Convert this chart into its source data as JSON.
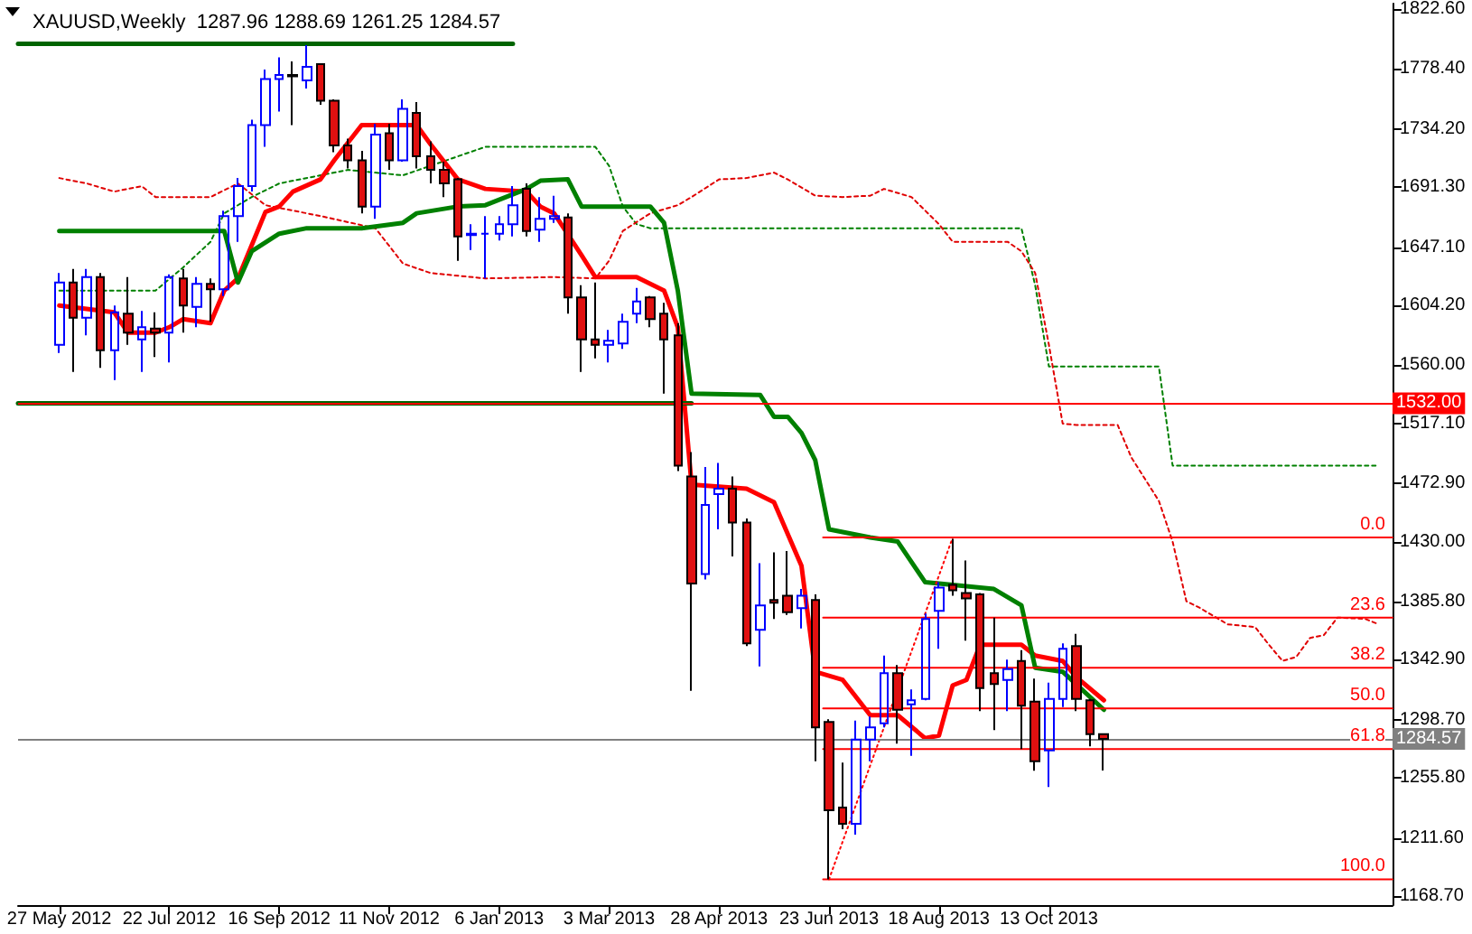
{
  "chart_data": {
    "type": "candlestick",
    "title": "XAUUSD,Weekly  1287.96 1288.69 1261.25 1284.57",
    "x": [
      "2012-05-27",
      "2012-06-03",
      "2012-06-10",
      "2012-06-17",
      "2012-06-24",
      "2012-07-01",
      "2012-07-08",
      "2012-07-15",
      "2012-07-22",
      "2012-07-29",
      "2012-08-05",
      "2012-08-12",
      "2012-08-19",
      "2012-08-26",
      "2012-09-02",
      "2012-09-09",
      "2012-09-16",
      "2012-09-23",
      "2012-09-30",
      "2012-10-07",
      "2012-10-14",
      "2012-10-21",
      "2012-10-28",
      "2012-11-04",
      "2012-11-11",
      "2012-11-18",
      "2012-11-25",
      "2012-12-02",
      "2012-12-09",
      "2012-12-16",
      "2012-12-23",
      "2012-12-30",
      "2013-01-06",
      "2013-01-13",
      "2013-01-20",
      "2013-01-27",
      "2013-02-03",
      "2013-02-10",
      "2013-02-17",
      "2013-02-24",
      "2013-03-03",
      "2013-03-10",
      "2013-03-17",
      "2013-03-24",
      "2013-03-31",
      "2013-04-07",
      "2013-04-14",
      "2013-04-21",
      "2013-04-28",
      "2013-05-05",
      "2013-05-12",
      "2013-05-19",
      "2013-05-26",
      "2013-06-02",
      "2013-06-09",
      "2013-06-16",
      "2013-06-23",
      "2013-06-30",
      "2013-07-07",
      "2013-07-14",
      "2013-07-21",
      "2013-07-28",
      "2013-08-04",
      "2013-08-11",
      "2013-08-18",
      "2013-08-25",
      "2013-09-01",
      "2013-09-08",
      "2013-09-15",
      "2013-09-22",
      "2013-09-29",
      "2013-10-06",
      "2013-10-13",
      "2013-10-20",
      "2013-10-27",
      "2013-11-03",
      "2013-11-10"
    ],
    "ohlc": [
      [
        1575,
        1628,
        1569,
        1621
      ],
      [
        1621,
        1631,
        1555,
        1595
      ],
      [
        1595,
        1631,
        1582,
        1625
      ],
      [
        1625,
        1628,
        1558,
        1571
      ],
      [
        1571,
        1604,
        1549,
        1599
      ],
      [
        1598,
        1625,
        1575,
        1584
      ],
      [
        1579,
        1600,
        1555,
        1588
      ],
      [
        1587,
        1599,
        1566,
        1584
      ],
      [
        1584,
        1627,
        1562,
        1625
      ],
      [
        1624,
        1631,
        1584,
        1604
      ],
      [
        1603,
        1625,
        1588,
        1620
      ],
      [
        1620,
        1624,
        1592,
        1616
      ],
      [
        1616,
        1674,
        1611,
        1670
      ],
      [
        1670,
        1698,
        1651,
        1692
      ],
      [
        1692,
        1741,
        1688,
        1737
      ],
      [
        1737,
        1778,
        1721,
        1771
      ],
      [
        1771,
        1787,
        1747,
        1774
      ],
      [
        1774,
        1784,
        1737,
        1773
      ],
      [
        1770,
        1796,
        1764,
        1780
      ],
      [
        1782,
        1782,
        1752,
        1755
      ],
      [
        1755,
        1756,
        1717,
        1722
      ],
      [
        1722,
        1727,
        1705,
        1711
      ],
      [
        1711,
        1718,
        1672,
        1677
      ],
      [
        1677,
        1738,
        1668,
        1730
      ],
      [
        1731,
        1738,
        1704,
        1711
      ],
      [
        1711,
        1756,
        1710,
        1749
      ],
      [
        1746,
        1754,
        1705,
        1714
      ],
      [
        1714,
        1725,
        1694,
        1704
      ],
      [
        1704,
        1710,
        1684,
        1694
      ],
      [
        1697,
        1698,
        1637,
        1655
      ],
      [
        1656,
        1664,
        1645,
        1657
      ],
      [
        1657,
        1670,
        1624,
        1657
      ],
      [
        1657,
        1670,
        1652,
        1664
      ],
      [
        1664,
        1692,
        1655,
        1678
      ],
      [
        1690,
        1694,
        1655,
        1659
      ],
      [
        1660,
        1684,
        1651,
        1668
      ],
      [
        1668,
        1685,
        1665,
        1670
      ],
      [
        1669,
        1672,
        1598,
        1610
      ],
      [
        1610,
        1619,
        1555,
        1579
      ],
      [
        1579,
        1621,
        1565,
        1575
      ],
      [
        1575,
        1586,
        1562,
        1578
      ],
      [
        1576,
        1598,
        1572,
        1592
      ],
      [
        1598,
        1617,
        1591,
        1607
      ],
      [
        1610,
        1611,
        1588,
        1594
      ],
      [
        1598,
        1606,
        1539,
        1579
      ],
      [
        1582,
        1591,
        1482,
        1486
      ],
      [
        1478,
        1496,
        1320,
        1399
      ],
      [
        1406,
        1485,
        1402,
        1457
      ],
      [
        1465,
        1488,
        1439,
        1469
      ],
      [
        1469,
        1478,
        1419,
        1444
      ],
      [
        1444,
        1447,
        1353,
        1355
      ],
      [
        1365,
        1414,
        1338,
        1383
      ],
      [
        1387,
        1422,
        1373,
        1385
      ],
      [
        1390,
        1423,
        1376,
        1378
      ],
      [
        1381,
        1395,
        1366,
        1390
      ],
      [
        1387,
        1391,
        1268,
        1293
      ],
      [
        1297,
        1299,
        1181,
        1232
      ],
      [
        1234,
        1267,
        1218,
        1222
      ],
      [
        1222,
        1298,
        1214,
        1284
      ],
      [
        1284,
        1301,
        1268,
        1293
      ],
      [
        1296,
        1346,
        1293,
        1333
      ],
      [
        1333,
        1339,
        1281,
        1306
      ],
      [
        1310,
        1321,
        1272,
        1313
      ],
      [
        1314,
        1377,
        1313,
        1373
      ],
      [
        1379,
        1400,
        1351,
        1396
      ],
      [
        1398,
        1432,
        1390,
        1394
      ],
      [
        1392,
        1416,
        1357,
        1388
      ],
      [
        1391,
        1392,
        1305,
        1322
      ],
      [
        1333,
        1374,
        1291,
        1325
      ],
      [
        1328,
        1343,
        1305,
        1336
      ],
      [
        1342,
        1350,
        1277,
        1309
      ],
      [
        1312,
        1329,
        1261,
        1268
      ],
      [
        1276,
        1326,
        1249,
        1314
      ],
      [
        1314,
        1355,
        1308,
        1351
      ],
      [
        1353,
        1362,
        1305,
        1314
      ],
      [
        1313,
        1314,
        1279,
        1288
      ],
      [
        1287.96,
        1288.69,
        1261.25,
        1284.57
      ]
    ],
    "series": [
      {
        "type": "line",
        "color": "#008000",
        "line_style": "dashed",
        "x": [
          "2012-05-27",
          "2012-07-15",
          "2012-07-29",
          "2012-08-12",
          "2012-08-19",
          "2012-09-02",
          "2012-09-16",
          "2012-10-07",
          "2012-10-21",
          "2012-11-18",
          "2012-12-16",
          "2012-12-30",
          "2013-02-24",
          "2013-03-03",
          "2013-03-10",
          "2013-03-17",
          "2013-03-24",
          "2013-09-29",
          "2013-10-06",
          "2013-10-13",
          "2013-12-08",
          "2013-12-15",
          "2014-03-30"
        ],
        "values": [
          1615,
          1615,
          1632,
          1651,
          1672,
          1684,
          1694,
          1700,
          1704,
          1700,
          1714,
          1721,
          1721,
          1707,
          1677,
          1664,
          1661,
          1661,
          1619,
          1559,
          1559,
          1486,
          1486
        ]
      },
      {
        "type": "line",
        "color": "#e00000",
        "line_style": "dashed",
        "x": [
          "2012-05-27",
          "2012-06-10",
          "2012-06-24",
          "2012-07-08",
          "2012-07-15",
          "2012-08-12",
          "2012-08-26",
          "2012-09-09",
          "2012-10-07",
          "2012-11-04",
          "2012-11-18",
          "2012-12-02",
          "2012-12-30",
          "2013-02-03",
          "2013-02-24",
          "2013-03-03",
          "2013-03-10",
          "2013-03-24",
          "2013-04-07",
          "2013-04-14",
          "2013-04-28",
          "2013-05-12",
          "2013-05-26",
          "2013-06-02",
          "2013-06-16",
          "2013-06-30",
          "2013-07-14",
          "2013-07-21",
          "2013-08-04",
          "2013-08-18",
          "2013-08-25",
          "2013-09-22",
          "2013-09-29",
          "2013-10-06",
          "2013-10-13",
          "2013-10-20",
          "2013-10-27",
          "2013-11-17",
          "2013-11-24",
          "2013-12-08",
          "2013-12-15",
          "2013-12-22",
          "2013-12-29",
          "2014-01-12",
          "2014-01-26",
          "2014-02-02",
          "2014-02-09",
          "2014-02-16",
          "2014-02-23",
          "2014-03-02",
          "2014-03-09",
          "2014-03-23",
          "2014-03-30"
        ],
        "values": [
          1698,
          1694,
          1688,
          1692,
          1684,
          1684,
          1694,
          1678,
          1670,
          1661,
          1635,
          1628,
          1624,
          1625,
          1624,
          1637,
          1659,
          1672,
          1678,
          1684,
          1697,
          1698,
          1702,
          1697,
          1685,
          1684,
          1685,
          1690,
          1684,
          1664,
          1651,
          1651,
          1644,
          1628,
          1575,
          1517,
          1516,
          1516,
          1492,
          1460,
          1430,
          1386,
          1381,
          1369,
          1367,
          1354,
          1342,
          1345,
          1359,
          1361,
          1374,
          1373,
          1369
        ]
      },
      {
        "type": "line",
        "color": "#ff0000",
        "line_style": "solid",
        "x": [
          "2012-05-27",
          "2012-06-24",
          "2012-07-01",
          "2012-07-15",
          "2012-07-22",
          "2012-07-29",
          "2012-08-12",
          "2012-08-19",
          "2012-08-26",
          "2012-09-09",
          "2012-09-16",
          "2012-09-23",
          "2012-10-07",
          "2012-10-14",
          "2012-10-28",
          "2012-11-25",
          "2012-12-02",
          "2012-12-16",
          "2012-12-30",
          "2013-01-20",
          "2013-01-27",
          "2013-02-03",
          "2013-02-17",
          "2013-02-24",
          "2013-03-17",
          "2013-03-31",
          "2013-04-07",
          "2013-04-14",
          "2013-05-12",
          "2013-05-26",
          "2013-06-09",
          "2013-06-16",
          "2013-06-30",
          "2013-07-14",
          "2013-07-28",
          "2013-08-11",
          "2013-08-18",
          "2013-08-25",
          "2013-09-01",
          "2013-09-08",
          "2013-09-29",
          "2013-10-06",
          "2013-10-20",
          "2013-10-27",
          "2013-11-10"
        ],
        "values": [
          1604,
          1599,
          1584,
          1584,
          1588,
          1594,
          1591,
          1615,
          1624,
          1673,
          1677,
          1688,
          1697,
          1711,
          1737,
          1737,
          1723,
          1697,
          1690,
          1688,
          1677,
          1672,
          1641,
          1625,
          1625,
          1615,
          1588,
          1472,
          1469,
          1459,
          1412,
          1334,
          1328,
          1302,
          1302,
          1285,
          1287,
          1324,
          1328,
          1354,
          1354,
          1346,
          1342,
          1330,
          1313
        ]
      },
      {
        "type": "line",
        "color": "#008000",
        "line_style": "solid",
        "x": [
          "2012-05-27",
          "2012-08-19",
          "2012-08-26",
          "2012-09-02",
          "2012-09-16",
          "2012-09-30",
          "2012-10-28",
          "2012-11-18",
          "2012-11-25",
          "2012-12-16",
          "2012-12-30",
          "2013-01-20",
          "2013-01-27",
          "2013-02-10",
          "2013-02-17",
          "2013-03-24",
          "2013-03-31",
          "2013-04-07",
          "2013-04-14",
          "2013-05-19",
          "2013-05-26",
          "2013-06-02",
          "2013-06-09",
          "2013-06-16",
          "2013-06-23",
          "2013-07-14",
          "2013-07-28",
          "2013-08-11",
          "2013-09-15",
          "2013-09-29",
          "2013-10-06",
          "2013-10-20",
          "2013-11-10"
        ],
        "values": [
          1659,
          1659,
          1621,
          1644,
          1657,
          1661,
          1661,
          1665,
          1672,
          1677,
          1678,
          1690,
          1696,
          1697,
          1677,
          1677,
          1665,
          1615,
          1539,
          1538,
          1522,
          1522,
          1510,
          1490,
          1439,
          1433,
          1430,
          1400,
          1395,
          1383,
          1337,
          1334,
          1306
        ]
      },
      {
        "type": "line",
        "color": "#006400",
        "line_style": "solid",
        "x": [
          "2012-05-06",
          "2013-01-13"
        ],
        "values": [
          1797,
          1797
        ]
      },
      {
        "type": "line",
        "color": "#006400",
        "line_style": "solid",
        "x": [
          "2012-05-06",
          "2013-04-14"
        ],
        "values": [
          1532,
          1532
        ]
      },
      {
        "type": "line",
        "color": "#ff0000",
        "line_style": "dotted",
        "x": [
          "2013-06-23",
          "2013-08-25"
        ],
        "values": [
          1181,
          1433
        ]
      },
      {
        "type": "line",
        "color": "#ff0000",
        "line_style": "solid",
        "x": [
          "2013-06-20",
          "2014-04-06"
        ],
        "values": [
          1433,
          1433
        ]
      },
      {
        "type": "line",
        "color": "#ff0000",
        "line_style": "solid",
        "x": [
          "2013-06-20",
          "2014-04-06"
        ],
        "values": [
          1374,
          1374
        ]
      },
      {
        "type": "line",
        "color": "#ff0000",
        "line_style": "solid",
        "x": [
          "2013-06-20",
          "2014-04-06"
        ],
        "values": [
          1337,
          1337
        ]
      },
      {
        "type": "line",
        "color": "#ff0000",
        "line_style": "solid",
        "x": [
          "2013-06-20",
          "2014-04-06"
        ],
        "values": [
          1307,
          1307
        ]
      },
      {
        "type": "line",
        "color": "#ff0000",
        "line_style": "solid",
        "x": [
          "2013-06-20",
          "2014-04-06"
        ],
        "values": [
          1277,
          1277
        ]
      },
      {
        "type": "line",
        "color": "#ff0000",
        "line_style": "solid",
        "x": [
          "2013-06-20",
          "2014-04-06"
        ],
        "values": [
          1181,
          1181
        ]
      }
    ],
    "annotations": [
      {
        "text": "0.0",
        "x": "2014-04-06",
        "y": 1433
      },
      {
        "text": "23.6",
        "x": "2014-04-06",
        "y": 1374
      },
      {
        "text": "38.2",
        "x": "2014-04-06",
        "y": 1337
      },
      {
        "text": "50.0",
        "x": "2014-04-06",
        "y": 1307
      },
      {
        "text": "61.8",
        "x": "2014-04-06",
        "y": 1277
      },
      {
        "text": "100.0",
        "x": "2014-04-06",
        "y": 1181
      }
    ],
    "ref_lines": [
      {
        "axis": "y",
        "value": 1532,
        "label": "1532.00",
        "color": "#ff0000"
      },
      {
        "axis": "y",
        "value": 1284.57,
        "label": "1284.57",
        "color": "#808080"
      }
    ],
    "xlim": [
      "2012-05-06",
      "2014-04-06"
    ],
    "xticks": [
      {
        "value": "2012-05-27",
        "label": "27 May 2012"
      },
      {
        "value": "2012-07-22",
        "label": "22 Jul 2012"
      },
      {
        "value": "2012-09-16",
        "label": "16 Sep 2012"
      },
      {
        "value": "2012-11-11",
        "label": "11 Nov 2012"
      },
      {
        "value": "2013-01-06",
        "label": "6 Jan 2013"
      },
      {
        "value": "2013-03-03",
        "label": "3 Mar 2013"
      },
      {
        "value": "2013-04-28",
        "label": "28 Apr 2013"
      },
      {
        "value": "2013-06-23",
        "label": "23 Jun 2013"
      },
      {
        "value": "2013-08-18",
        "label": "18 Aug 2013"
      },
      {
        "value": "2013-10-13",
        "label": "13 Oct 2013"
      }
    ],
    "ylim": [
      1162,
      1826.6
    ],
    "yticks": [
      {
        "value": 1168.7,
        "label": "1168.70"
      },
      {
        "value": 1211.6,
        "label": "1211.60"
      },
      {
        "value": 1255.8,
        "label": "1255.80"
      },
      {
        "value": 1298.7,
        "label": "1298.70"
      },
      {
        "value": 1342.9,
        "label": "1342.90"
      },
      {
        "value": 1385.8,
        "label": "1385.80"
      },
      {
        "value": 1430,
        "label": "1430.00"
      },
      {
        "value": 1472.9,
        "label": "1472.90"
      },
      {
        "value": 1517.1,
        "label": "1517.10"
      },
      {
        "value": 1560,
        "label": "1560.00"
      },
      {
        "value": 1604.2,
        "label": "1604.20"
      },
      {
        "value": 1647.1,
        "label": "1647.10"
      },
      {
        "value": 1691.3,
        "label": "1691.30"
      },
      {
        "value": 1734.2,
        "label": "1734.20"
      },
      {
        "value": 1778.4,
        "label": "1778.40"
      },
      {
        "value": 1822.6,
        "label": "1822.60"
      }
    ],
    "grid": false,
    "marker": "none"
  }
}
